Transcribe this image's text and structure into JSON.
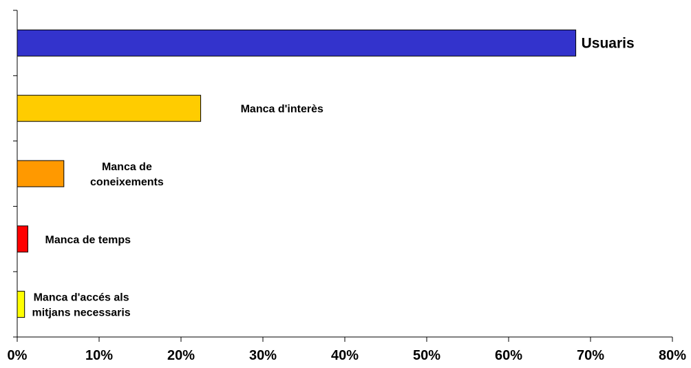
{
  "chart_data": {
    "type": "bar",
    "orientation": "horizontal",
    "categories": [
      [
        "Usuaris"
      ],
      [
        "Manca d'interès"
      ],
      [
        "Manca de",
        "coneixements"
      ],
      [
        "Manca de temps"
      ],
      [
        "Manca d'accés als",
        "mitjans necessaris"
      ]
    ],
    "values": [
      0.682,
      0.224,
      0.057,
      0.013,
      0.009
    ],
    "colors": [
      "#3333CC",
      "#FFCC00",
      "#FF9900",
      "#FF0000",
      "#FFFF00"
    ],
    "xlim": [
      0,
      0.8
    ],
    "xticks": [
      0,
      0.1,
      0.2,
      0.3,
      0.4,
      0.5,
      0.6,
      0.7,
      0.8
    ],
    "xtick_labels": [
      "0%",
      "10%",
      "20%",
      "30%",
      "40%",
      "50%",
      "60%",
      "70%",
      "80%"
    ],
    "grid": false,
    "legend": "none"
  }
}
